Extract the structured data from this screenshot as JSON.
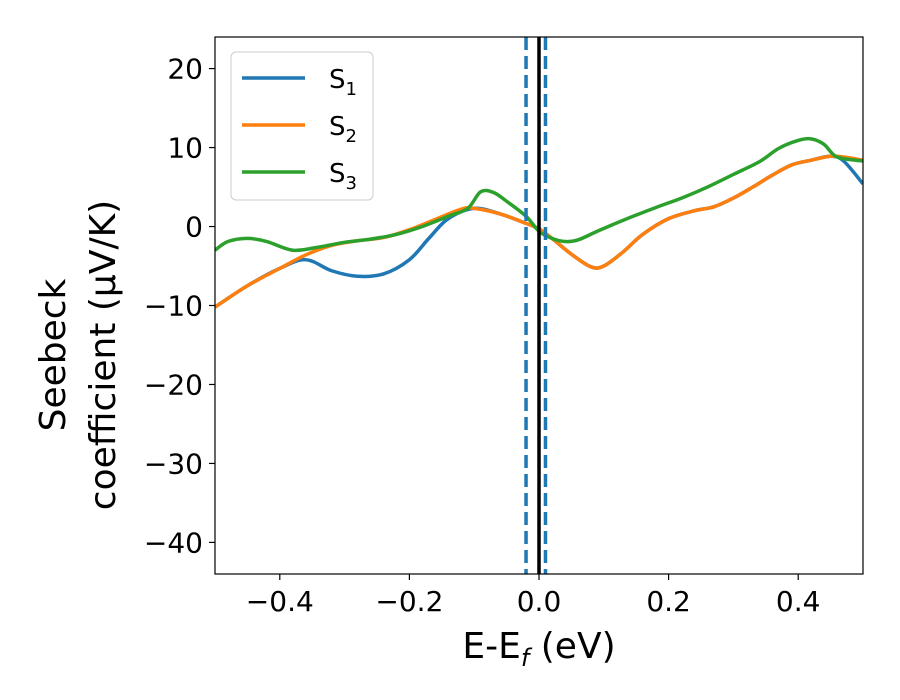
{
  "chart_data": {
    "type": "line",
    "xlabel": {
      "main": "E-E",
      "sub": "f",
      "tail": " (eV)"
    },
    "ylabel": {
      "line1": "Seebeck",
      "line2": "coefficient  (μV/K)"
    },
    "xlim": [
      -0.5,
      0.5
    ],
    "ylim": [
      -44,
      24
    ],
    "xticks": [
      -0.4,
      -0.2,
      0.0,
      0.2,
      0.4
    ],
    "xtick_labels": [
      "−0.4",
      "−0.2",
      "0.0",
      "0.2",
      "0.4"
    ],
    "yticks": [
      20,
      10,
      0,
      -10,
      -20,
      -30,
      -40
    ],
    "ytick_labels": [
      "20",
      "10",
      "0",
      "−10",
      "−20",
      "−30",
      "−40"
    ],
    "grid": false,
    "legend_position": "top-left",
    "vertical_lines": [
      {
        "x": -0.02,
        "color": "#1f77b4",
        "style": "dashed"
      },
      {
        "x": 0.01,
        "color": "#1f77b4",
        "style": "dashed"
      },
      {
        "x": 0.0,
        "color": "#000000",
        "style": "solid"
      }
    ],
    "series": [
      {
        "name": "S",
        "sub": "1",
        "color": "#1f77b4",
        "points": [
          [
            -0.5,
            -10.2
          ],
          [
            -0.45,
            -7.5
          ],
          [
            -0.4,
            -5.3
          ],
          [
            -0.36,
            -4.2
          ],
          [
            -0.32,
            -5.6
          ],
          [
            -0.28,
            -6.3
          ],
          [
            -0.24,
            -6.0
          ],
          [
            -0.2,
            -4.2
          ],
          [
            -0.17,
            -1.5
          ],
          [
            -0.14,
            1.0
          ],
          [
            -0.1,
            2.3
          ],
          [
            -0.06,
            1.6
          ],
          [
            -0.02,
            0.4
          ],
          [
            0.0,
            -0.3
          ],
          [
            0.02,
            -1.5
          ],
          [
            0.05,
            -3.5
          ],
          [
            0.08,
            -5.1
          ],
          [
            0.1,
            -5.0
          ],
          [
            0.13,
            -3.2
          ],
          [
            0.16,
            -1.0
          ],
          [
            0.2,
            1.0
          ],
          [
            0.24,
            2.0
          ],
          [
            0.27,
            2.5
          ],
          [
            0.3,
            3.6
          ],
          [
            0.33,
            5.0
          ],
          [
            0.36,
            6.5
          ],
          [
            0.39,
            7.8
          ],
          [
            0.42,
            8.4
          ],
          [
            0.45,
            8.9
          ],
          [
            0.47,
            8.3
          ],
          [
            0.5,
            5.4
          ]
        ]
      },
      {
        "name": "S",
        "sub": "2",
        "color": "#ff7f0e",
        "points": [
          [
            -0.5,
            -10.2
          ],
          [
            -0.45,
            -7.5
          ],
          [
            -0.4,
            -5.3
          ],
          [
            -0.36,
            -3.6
          ],
          [
            -0.32,
            -2.4
          ],
          [
            -0.28,
            -1.8
          ],
          [
            -0.24,
            -1.4
          ],
          [
            -0.2,
            -0.4
          ],
          [
            -0.16,
            0.9
          ],
          [
            -0.12,
            2.2
          ],
          [
            -0.1,
            2.3
          ],
          [
            -0.06,
            1.6
          ],
          [
            -0.02,
            0.4
          ],
          [
            0.0,
            -0.3
          ],
          [
            0.02,
            -1.5
          ],
          [
            0.05,
            -3.5
          ],
          [
            0.08,
            -5.1
          ],
          [
            0.1,
            -5.0
          ],
          [
            0.13,
            -3.2
          ],
          [
            0.16,
            -1.0
          ],
          [
            0.2,
            1.0
          ],
          [
            0.24,
            2.0
          ],
          [
            0.27,
            2.5
          ],
          [
            0.3,
            3.6
          ],
          [
            0.33,
            5.0
          ],
          [
            0.36,
            6.5
          ],
          [
            0.39,
            7.8
          ],
          [
            0.42,
            8.4
          ],
          [
            0.45,
            8.9
          ],
          [
            0.47,
            8.8
          ],
          [
            0.5,
            8.4
          ]
        ]
      },
      {
        "name": "S",
        "sub": "3",
        "color": "#2ca02c",
        "points": [
          [
            -0.5,
            -3.0
          ],
          [
            -0.48,
            -1.9
          ],
          [
            -0.45,
            -1.5
          ],
          [
            -0.42,
            -1.9
          ],
          [
            -0.38,
            -3.0
          ],
          [
            -0.34,
            -2.6
          ],
          [
            -0.3,
            -2.0
          ],
          [
            -0.26,
            -1.6
          ],
          [
            -0.22,
            -1.0
          ],
          [
            -0.18,
            0.0
          ],
          [
            -0.14,
            1.3
          ],
          [
            -0.11,
            2.3
          ],
          [
            -0.09,
            4.4
          ],
          [
            -0.07,
            4.3
          ],
          [
            -0.05,
            3.2
          ],
          [
            -0.02,
            1.3
          ],
          [
            0.0,
            -0.6
          ],
          [
            0.02,
            -1.5
          ],
          [
            0.04,
            -1.9
          ],
          [
            0.06,
            -1.7
          ],
          [
            0.09,
            -0.6
          ],
          [
            0.13,
            0.8
          ],
          [
            0.18,
            2.4
          ],
          [
            0.22,
            3.6
          ],
          [
            0.26,
            5.0
          ],
          [
            0.3,
            6.6
          ],
          [
            0.34,
            8.2
          ],
          [
            0.37,
            9.9
          ],
          [
            0.4,
            10.9
          ],
          [
            0.42,
            11.1
          ],
          [
            0.44,
            10.4
          ],
          [
            0.46,
            8.8
          ],
          [
            0.5,
            8.3
          ]
        ]
      }
    ]
  }
}
